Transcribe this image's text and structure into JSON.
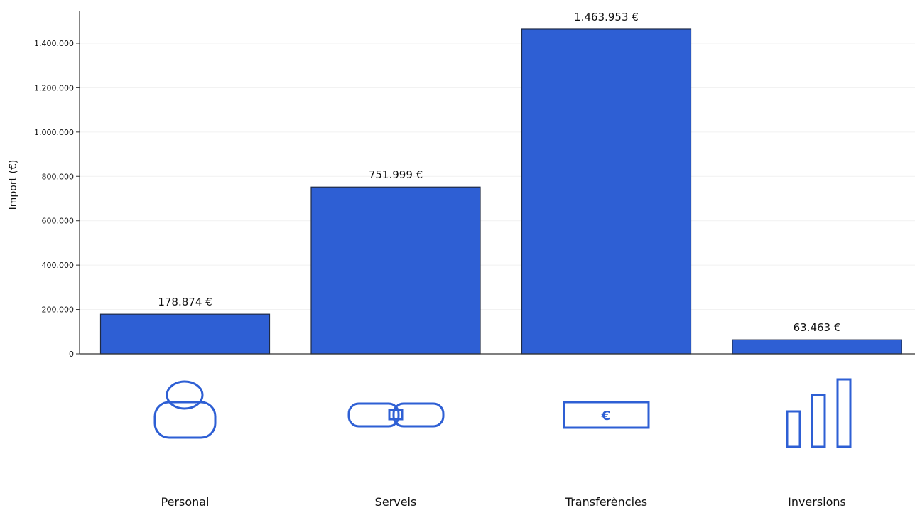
{
  "chart_data": {
    "type": "bar",
    "categories": [
      "Personal",
      "Serveis",
      "Transferències",
      "Inversions"
    ],
    "values": [
      178874,
      751999,
      1463953,
      63463
    ],
    "value_labels": [
      "178.874 €",
      "751.999 €",
      "1.463.953 €",
      "63.463 €"
    ],
    "ylabel": "Import (€)",
    "ylim": [
      0,
      1500000
    ],
    "yticks": [
      0,
      200000,
      400000,
      600000,
      800000,
      1000000,
      1200000,
      1400000
    ],
    "ytick_labels": [
      "0",
      "200.000",
      "400.000",
      "600.000",
      "800.000",
      "1.000.000",
      "1.200.000",
      "1.400.000"
    ],
    "grid": "horizontal",
    "icons": [
      "person-icon",
      "handshake-icon",
      "euro-banknote-icon",
      "bar-growth-icon"
    ],
    "euro_symbol": "€",
    "colors": {
      "bar": "#2e5fd4",
      "bar_edge": "#1f2a44",
      "icon": "#2e5fd4",
      "axis": "#333333",
      "grid": "#f1f1f1"
    }
  }
}
